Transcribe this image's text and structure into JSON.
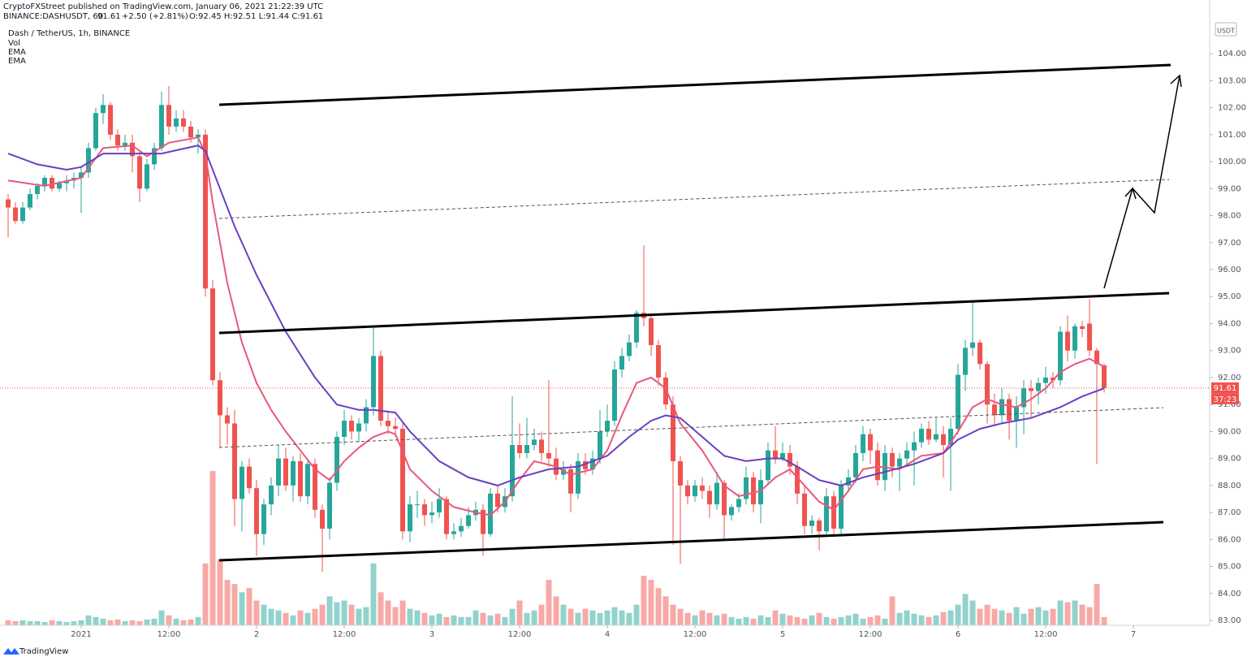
{
  "chart_data": {
    "type": "candlestick",
    "published": "CryptoFXStreet published on TradingView.com, January 06, 2021 21:22:39 UTC",
    "symbol": "BINANCE:DASHUSDT, 60",
    "last": "91.61",
    "change": "+2.50 (+2.81%)",
    "ohlc": "O:92.45 H:92.51 L:91.44 C:91.61",
    "title": "Dash / TetherUS, 1h, BINANCE",
    "volume_name": "Vol",
    "currency": "USDT",
    "countdown": "37:23",
    "brand": "TradingView",
    "up_color": "#26a69a",
    "down_color": "#ef5350",
    "xlim": [
      -1.11,
      164.44
    ],
    "ylim": [
      82.82,
      105.99
    ],
    "xticks": [
      {
        "value": 10,
        "label": "2021"
      },
      {
        "value": 22,
        "label": "12:00"
      },
      {
        "value": 34,
        "label": "2"
      },
      {
        "value": 46,
        "label": "12:00"
      },
      {
        "value": 58,
        "label": "3"
      },
      {
        "value": 70,
        "label": "12:00"
      },
      {
        "value": 82,
        "label": "4"
      },
      {
        "value": 94,
        "label": "12:00"
      },
      {
        "value": 106,
        "label": "5"
      },
      {
        "value": 118,
        "label": "12:00"
      },
      {
        "value": 130,
        "label": "6"
      },
      {
        "value": 142,
        "label": "12:00"
      },
      {
        "value": 154,
        "label": "7"
      }
    ],
    "yticks": [
      {
        "value": 83,
        "label": "83.00"
      },
      {
        "value": 84,
        "label": "84.00"
      },
      {
        "value": 85,
        "label": "85.00"
      },
      {
        "value": 86,
        "label": "86.00"
      },
      {
        "value": 87,
        "label": "87.00"
      },
      {
        "value": 88,
        "label": "88.00"
      },
      {
        "value": 89,
        "label": "89.00"
      },
      {
        "value": 90,
        "label": "90.00"
      },
      {
        "value": 91,
        "label": "91.00"
      },
      {
        "value": 92,
        "label": "92.00"
      },
      {
        "value": 93,
        "label": "93.00"
      },
      {
        "value": 94,
        "label": "94.00"
      },
      {
        "value": 95,
        "label": "95.00"
      },
      {
        "value": 96,
        "label": "96.00"
      },
      {
        "value": 97,
        "label": "97.00"
      },
      {
        "value": 98,
        "label": "98.00"
      },
      {
        "value": 99,
        "label": "99.00"
      },
      {
        "value": 100,
        "label": "100.00"
      },
      {
        "value": 101,
        "label": "101.00"
      },
      {
        "value": 102,
        "label": "102.00"
      },
      {
        "value": 103,
        "label": "103.00"
      },
      {
        "value": 104,
        "label": "104.00"
      }
    ],
    "candles": [
      [
        98.6,
        98.8,
        97.2,
        98.3
      ],
      [
        98.3,
        98.5,
        97.7,
        97.8
      ],
      [
        97.8,
        98.5,
        97.7,
        98.3
      ],
      [
        98.3,
        99.0,
        98.2,
        98.8
      ],
      [
        98.8,
        99.2,
        98.6,
        99.1
      ],
      [
        99.1,
        99.5,
        98.9,
        99.4
      ],
      [
        99.4,
        99.5,
        98.9,
        99.0
      ],
      [
        99.0,
        99.3,
        98.9,
        99.2
      ],
      [
        99.2,
        99.5,
        98.9,
        99.3
      ],
      [
        99.3,
        99.6,
        99.0,
        99.4
      ],
      [
        99.4,
        99.8,
        98.1,
        99.6
      ],
      [
        99.6,
        100.7,
        99.4,
        100.5
      ],
      [
        100.5,
        102.0,
        100.4,
        101.8
      ],
      [
        101.8,
        102.5,
        101.4,
        102.1
      ],
      [
        102.1,
        102.2,
        100.8,
        101.0
      ],
      [
        101.0,
        101.2,
        100.4,
        100.6
      ],
      [
        100.6,
        101.0,
        100.4,
        100.7
      ],
      [
        100.7,
        101.0,
        99.6,
        100.2
      ],
      [
        100.2,
        100.4,
        98.5,
        99.0
      ],
      [
        99.0,
        100.1,
        98.9,
        99.9
      ],
      [
        99.9,
        100.7,
        99.7,
        100.5
      ],
      [
        100.5,
        102.6,
        100.4,
        102.1
      ],
      [
        102.1,
        102.8,
        101.0,
        101.3
      ],
      [
        101.3,
        101.9,
        101.1,
        101.6
      ],
      [
        101.6,
        101.9,
        101.1,
        101.3
      ],
      [
        101.3,
        101.5,
        100.7,
        100.9
      ],
      [
        100.9,
        101.2,
        100.3,
        101.0
      ],
      [
        101.0,
        101.2,
        95.0,
        95.3
      ],
      [
        95.3,
        95.6,
        91.7,
        91.9
      ],
      [
        91.9,
        92.2,
        89.4,
        90.6
      ],
      [
        90.6,
        90.9,
        89.5,
        90.3
      ],
      [
        90.3,
        90.8,
        86.5,
        87.5
      ],
      [
        87.5,
        88.9,
        86.3,
        88.7
      ],
      [
        88.7,
        89.0,
        87.7,
        87.9
      ],
      [
        87.9,
        88.2,
        85.4,
        86.2
      ],
      [
        86.2,
        87.5,
        85.8,
        87.3
      ],
      [
        87.3,
        88.3,
        86.9,
        88.0
      ],
      [
        88.0,
        89.5,
        87.6,
        89.0
      ],
      [
        89.0,
        89.4,
        87.8,
        88.0
      ],
      [
        88.0,
        89.1,
        87.4,
        88.9
      ],
      [
        88.9,
        89.2,
        87.4,
        87.6
      ],
      [
        87.6,
        89.0,
        87.3,
        88.8
      ],
      [
        88.8,
        89.0,
        86.8,
        87.1
      ],
      [
        87.1,
        87.3,
        84.8,
        86.4
      ],
      [
        86.4,
        88.3,
        86.0,
        88.1
      ],
      [
        88.1,
        90.0,
        87.8,
        89.8
      ],
      [
        89.8,
        90.8,
        89.5,
        90.4
      ],
      [
        90.4,
        90.6,
        89.7,
        90.0
      ],
      [
        90.0,
        90.5,
        89.6,
        90.3
      ],
      [
        90.3,
        91.2,
        90.0,
        90.9
      ],
      [
        90.9,
        93.9,
        90.6,
        92.8
      ],
      [
        92.8,
        93.0,
        90.2,
        90.4
      ],
      [
        90.4,
        90.7,
        89.9,
        90.2
      ],
      [
        90.2,
        90.5,
        89.8,
        90.1
      ],
      [
        90.1,
        90.3,
        86.0,
        86.3
      ],
      [
        86.3,
        87.6,
        85.9,
        87.3
      ],
      [
        87.3,
        87.8,
        86.8,
        87.3
      ],
      [
        87.3,
        87.5,
        86.5,
        86.9
      ],
      [
        86.9,
        87.4,
        86.6,
        87.0
      ],
      [
        87.0,
        87.9,
        86.8,
        87.5
      ],
      [
        87.5,
        87.6,
        86.0,
        86.2
      ],
      [
        86.2,
        86.6,
        86.0,
        86.3
      ],
      [
        86.3,
        86.8,
        86.1,
        86.5
      ],
      [
        86.5,
        87.2,
        86.4,
        86.9
      ],
      [
        86.9,
        87.4,
        86.7,
        87.1
      ],
      [
        87.1,
        87.3,
        85.4,
        86.2
      ],
      [
        86.2,
        87.9,
        86.1,
        87.7
      ],
      [
        87.7,
        88.0,
        87.0,
        87.2
      ],
      [
        87.2,
        87.9,
        87.0,
        87.6
      ],
      [
        87.6,
        91.3,
        87.4,
        89.5
      ],
      [
        89.5,
        90.3,
        89.0,
        89.2
      ],
      [
        89.2,
        90.5,
        89.0,
        89.5
      ],
      [
        89.5,
        90.1,
        89.3,
        89.7
      ],
      [
        89.7,
        90.0,
        88.9,
        89.2
      ],
      [
        89.2,
        91.9,
        88.7,
        89.0
      ],
      [
        89.0,
        89.4,
        88.2,
        88.4
      ],
      [
        88.4,
        88.9,
        88.2,
        88.6
      ],
      [
        88.6,
        88.8,
        87.0,
        87.7
      ],
      [
        87.7,
        89.2,
        87.5,
        88.9
      ],
      [
        88.9,
        89.2,
        88.4,
        88.6
      ],
      [
        88.6,
        89.3,
        88.4,
        89.0
      ],
      [
        89.0,
        90.8,
        88.8,
        90.0
      ],
      [
        90.0,
        91.0,
        89.8,
        90.4
      ],
      [
        90.4,
        92.6,
        90.2,
        92.3
      ],
      [
        92.3,
        93.1,
        92.0,
        92.8
      ],
      [
        92.8,
        93.6,
        92.6,
        93.3
      ],
      [
        93.3,
        94.5,
        93.1,
        94.4
      ],
      [
        94.4,
        96.9,
        93.9,
        94.2
      ],
      [
        94.2,
        94.3,
        92.8,
        93.2
      ],
      [
        93.2,
        93.4,
        91.7,
        92.0
      ],
      [
        92.0,
        92.2,
        90.8,
        91.0
      ],
      [
        91.0,
        91.3,
        85.8,
        88.9
      ],
      [
        88.9,
        89.1,
        85.1,
        88.0
      ],
      [
        88.0,
        88.2,
        87.3,
        87.6
      ],
      [
        87.6,
        88.2,
        87.4,
        88.0
      ],
      [
        88.0,
        88.3,
        87.5,
        87.8
      ],
      [
        87.8,
        88.0,
        86.8,
        87.3
      ],
      [
        87.3,
        88.5,
        87.1,
        88.1
      ],
      [
        88.1,
        88.2,
        86.0,
        86.9
      ],
      [
        86.9,
        87.3,
        86.7,
        87.2
      ],
      [
        87.2,
        87.7,
        87.0,
        87.5
      ],
      [
        87.5,
        88.7,
        87.3,
        88.3
      ],
      [
        88.3,
        88.5,
        87.0,
        87.3
      ],
      [
        87.3,
        88.6,
        86.6,
        88.2
      ],
      [
        88.2,
        89.6,
        88.0,
        89.3
      ],
      [
        89.3,
        90.2,
        88.8,
        89.0
      ],
      [
        89.0,
        89.6,
        88.9,
        89.2
      ],
      [
        89.2,
        89.5,
        88.4,
        88.7
      ],
      [
        88.7,
        88.9,
        87.3,
        87.7
      ],
      [
        87.7,
        88.0,
        86.2,
        86.5
      ],
      [
        86.5,
        86.9,
        86.2,
        86.7
      ],
      [
        86.7,
        86.8,
        85.6,
        86.3
      ],
      [
        86.3,
        87.9,
        86.1,
        87.6
      ],
      [
        87.6,
        87.8,
        86.1,
        86.4
      ],
      [
        86.4,
        88.2,
        86.2,
        88.0
      ],
      [
        88.0,
        88.6,
        87.8,
        88.3
      ],
      [
        88.3,
        89.5,
        88.1,
        89.2
      ],
      [
        89.2,
        90.2,
        88.9,
        89.9
      ],
      [
        89.9,
        90.1,
        88.8,
        89.3
      ],
      [
        89.3,
        89.6,
        88.0,
        88.2
      ],
      [
        88.2,
        89.5,
        87.8,
        89.2
      ],
      [
        89.2,
        89.4,
        88.3,
        88.7
      ],
      [
        88.7,
        89.2,
        87.8,
        89.0
      ],
      [
        89.0,
        89.6,
        88.8,
        89.3
      ],
      [
        89.3,
        90.0,
        88.0,
        89.6
      ],
      [
        89.6,
        90.3,
        89.4,
        90.1
      ],
      [
        90.1,
        90.4,
        89.5,
        89.7
      ],
      [
        89.7,
        90.5,
        89.6,
        89.9
      ],
      [
        89.9,
        90.2,
        88.3,
        89.5
      ],
      [
        89.5,
        90.5,
        87.8,
        90.1
      ],
      [
        90.1,
        92.5,
        89.9,
        92.1
      ],
      [
        92.1,
        93.4,
        91.5,
        93.1
      ],
      [
        93.1,
        94.8,
        92.8,
        93.3
      ],
      [
        93.3,
        93.4,
        92.3,
        92.5
      ],
      [
        92.5,
        92.6,
        90.3,
        91.0
      ],
      [
        91.0,
        91.4,
        90.2,
        90.6
      ],
      [
        90.6,
        91.6,
        90.3,
        91.2
      ],
      [
        91.2,
        91.4,
        89.7,
        90.4
      ],
      [
        90.4,
        91.3,
        89.4,
        90.9
      ],
      [
        90.9,
        91.9,
        89.9,
        91.6
      ],
      [
        91.6,
        91.9,
        90.5,
        91.5
      ],
      [
        91.5,
        92.0,
        91.0,
        91.8
      ],
      [
        91.8,
        92.4,
        91.4,
        92.0
      ],
      [
        92.0,
        92.2,
        91.6,
        91.9
      ],
      [
        91.9,
        93.9,
        91.7,
        93.7
      ],
      [
        93.7,
        94.3,
        92.6,
        93.0
      ],
      [
        93.0,
        94.0,
        92.7,
        93.9
      ],
      [
        93.9,
        94.1,
        93.5,
        93.8
      ],
      [
        94.0,
        94.9,
        92.8,
        93.0
      ],
      [
        93.0,
        93.1,
        88.8,
        92.5
      ],
      [
        92.45,
        92.51,
        91.44,
        91.61
      ]
    ],
    "volume": [
      6,
      5,
      6,
      5,
      5,
      4,
      6,
      5,
      4,
      5,
      6,
      12,
      10,
      8,
      6,
      7,
      5,
      6,
      5,
      7,
      8,
      18,
      12,
      8,
      6,
      7,
      10,
      75,
      187,
      80,
      55,
      50,
      40,
      45,
      30,
      25,
      20,
      18,
      15,
      12,
      18,
      15,
      20,
      25,
      35,
      28,
      30,
      25,
      20,
      22,
      75,
      40,
      30,
      22,
      30,
      20,
      18,
      15,
      12,
      14,
      10,
      12,
      10,
      10,
      18,
      15,
      12,
      14,
      10,
      20,
      30,
      15,
      18,
      25,
      55,
      35,
      25,
      20,
      15,
      20,
      18,
      15,
      18,
      22,
      18,
      15,
      25,
      60,
      55,
      45,
      35,
      25,
      20,
      15,
      12,
      18,
      15,
      12,
      14,
      10,
      8,
      10,
      8,
      12,
      10,
      18,
      14,
      12,
      10,
      8,
      12,
      15,
      10,
      8,
      10,
      12,
      14,
      8,
      10,
      12,
      8,
      35,
      15,
      18,
      14,
      12,
      10,
      12,
      16,
      18,
      25,
      38,
      30,
      20,
      25,
      20,
      18,
      15,
      22,
      14,
      20,
      22,
      18,
      20,
      30,
      28,
      30,
      25,
      22,
      50,
      10
    ],
    "series": [
      {
        "name": "EMA",
        "color": "#e8587c",
        "x": [
          0,
          5,
          10,
          13,
          17,
          19,
          22,
          26,
          27,
          28,
          30,
          32,
          34,
          36,
          38,
          40,
          42,
          44,
          46,
          48,
          50,
          52,
          53,
          55,
          58,
          61,
          64,
          66,
          68,
          70,
          72,
          75,
          77,
          80,
          82,
          84,
          86,
          88,
          90,
          92,
          95,
          98,
          100,
          103,
          105,
          107,
          109,
          111,
          113,
          115,
          117,
          119,
          122,
          125,
          128,
          130,
          132,
          134,
          136,
          138,
          140,
          142,
          144,
          146,
          148,
          150
        ],
        "values": [
          99.3,
          99.1,
          99.4,
          100.5,
          100.6,
          100.2,
          100.7,
          100.9,
          100.3,
          98.5,
          95.5,
          93.3,
          91.8,
          90.8,
          90.0,
          89.3,
          88.6,
          88.2,
          88.9,
          89.4,
          89.8,
          90.0,
          89.9,
          88.6,
          87.8,
          87.2,
          87.0,
          86.9,
          87.4,
          88.2,
          88.9,
          88.7,
          88.4,
          88.6,
          89.3,
          90.6,
          91.8,
          92.0,
          91.6,
          90.3,
          89.3,
          88.0,
          87.6,
          87.8,
          88.3,
          88.6,
          88.0,
          87.4,
          87.1,
          87.8,
          88.6,
          88.7,
          88.6,
          89.1,
          89.2,
          90.0,
          90.9,
          91.2,
          91.0,
          90.9,
          91.2,
          91.6,
          92.2,
          92.5,
          92.7,
          92.4
        ]
      },
      {
        "name": "EMA",
        "color": "#6a3fc1",
        "x": [
          0,
          4,
          8,
          10,
          13,
          17,
          21,
          26,
          27,
          29,
          31,
          34,
          38,
          42,
          45,
          48,
          50,
          53,
          55,
          59,
          63,
          67,
          70,
          74,
          78,
          82,
          85,
          88,
          90,
          92,
          95,
          98,
          101,
          104,
          106,
          108,
          111,
          114,
          117,
          120,
          124,
          128,
          130,
          133,
          136,
          140,
          144,
          147,
          150
        ],
        "values": [
          100.3,
          99.9,
          99.7,
          99.8,
          100.3,
          100.3,
          100.3,
          100.6,
          100.4,
          99.0,
          97.6,
          95.8,
          93.7,
          92.0,
          91.0,
          90.8,
          90.8,
          90.7,
          90.0,
          88.9,
          88.3,
          88.0,
          88.3,
          88.6,
          88.7,
          89.1,
          89.8,
          90.4,
          90.6,
          90.5,
          89.8,
          89.1,
          88.9,
          89.0,
          89.0,
          88.7,
          88.2,
          88.0,
          88.3,
          88.5,
          88.8,
          89.2,
          89.7,
          90.1,
          90.3,
          90.5,
          90.9,
          91.3,
          91.6
        ]
      }
    ]
  }
}
